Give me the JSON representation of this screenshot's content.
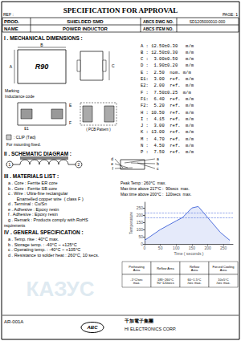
{
  "chart_data": {
    "type": "line",
    "title": "SPECIFICATION FOR APPROVAL",
    "x": [
      0,
      50,
      100,
      120,
      150,
      170,
      200,
      240,
      270
    ],
    "values": [
      25,
      100,
      160,
      183,
      250,
      260,
      183,
      80,
      25
    ],
    "xlim": [
      0,
      280
    ],
    "ylim": [
      0,
      290
    ],
    "xticks": [
      0,
      50,
      100,
      150,
      200,
      250
    ],
    "yticks": [
      0,
      50,
      100,
      150,
      200,
      250
    ],
    "xlabel": "Time ( seconds )",
    "ylabel": "Temperature",
    "hlines": [
      183,
      217
    ],
    "grid": false,
    "annotations": {
      "ref": "REF :",
      "page": "PAGE: 1",
      "header": [
        [
          "PROD.",
          "SHIELDED SMD",
          "ABCS DWG NO.",
          "SD1205000010-000"
        ],
        [
          "NAME",
          "POWER INDUCTOR",
          "ABCS ITEM NO."
        ]
      ],
      "section1": "I . MECHANICAL DIMENSIONS :",
      "dimensions": [
        "A : 12.50±0.30   m/m",
        "B : 12.50±0.30   m/m",
        "C :  3.00±0.50   m/m",
        "D :  1.90±0.20   m/m",
        "E :  2.50  nom. m/m",
        "E1:  3.00  ref.  m/m",
        "E2:  2.00  ref.  m/m",
        "F :  7.50±0.25  m/m",
        "F1:  6.40  ref.  m/m",
        "F2:  5.20  ref.  m/m",
        "H : 10.50  ref.  m/m",
        "I :  4.15  ref.  m/m",
        "J :  3.00  ref.  m/m",
        "K : 13.00  ref.  m/m",
        "M :  4.70  ref.  m/m",
        "N :  4.50  ref.  m/m",
        "P :  7.50  ref.  m/m"
      ],
      "drawing": {
        "top_view": "R90",
        "a": "A",
        "b": "B",
        "c": "C",
        "e": "E",
        "e1": "E1",
        "f": "F",
        "marking": "Marking",
        "inductance": "Inductance code",
        "pcb": "( PCB Pattern )",
        "clip": ": CLIP (Tød)",
        "mount": "For mounting fixed."
      },
      "section2": "II . SCHEMATIC DIAGRAM :",
      "schematic": {
        "left": [
          "1",
          "2"
        ],
        "right": [
          "a",
          "b",
          "c"
        ],
        "leads": [
          "d",
          "e",
          "f"
        ]
      },
      "section3": "III . MATERIALS LIST :",
      "materials": [
        "a . Core : Ferrite ER core",
        "b . Core : Ferrite SB core",
        "c . Wire : Ultra-fine rectangular",
        "       Enamelled copper wire  ( class F )",
        "d . Terminal : Cu/Sn",
        "e . Adhesive : Epoxy resin",
        "f . Adhesive : Epoxy resin",
        "g . Remark : Products comply with RoHS"
      ],
      "mat_notes": [
        "Peak Temp : 260°C  max.",
        "Max time above 217°C :  90secs  max.",
        "Max time above 200°C :  120secs  max."
      ],
      "table": {
        "headers": [
          "Preheating\nArea",
          "Reflow Area",
          "Reflow\nArea",
          "Forced Cooling\nArea"
        ],
        "row": [
          "-1°C/sec\nmax.",
          "183~260°C\n90~120secs",
          "60~1.5°C\n/sec max.",
          "10±5°C\n/sec max."
        ]
      },
      "requirements": "requirements",
      "section4": "IV . GENERAL SPECIFICATION :",
      "general_specs": [
        "a . Temp. rise : 40°C max.",
        "b . Storage temp. : -40°C ~ +125°C",
        "c . Operating temp. : -40°C ~ +105°C",
        "d . Resistance to solder heat : 260°C, 10 secs."
      ],
      "footer": {
        "left": "AR-001A",
        "logo": "ABC",
        "company": "千加電子集團",
        "eng": "HI ELECTRONICS CORP."
      },
      "watermark": "КАЗУС",
      "watermark_color": "#b8cfe0"
    }
  }
}
